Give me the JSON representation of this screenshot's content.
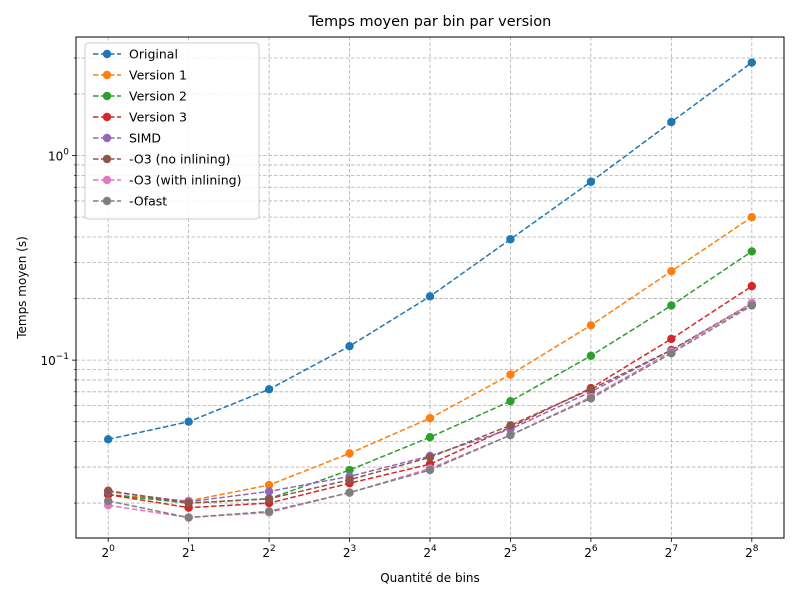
{
  "chart_data": {
    "type": "line",
    "title": "Temps moyen par bin par version",
    "xlabel": "Quantité de bins",
    "ylabel": "Temps moyen (s)",
    "x_scale": "log2",
    "y_scale": "log10",
    "x": [
      1,
      2,
      4,
      8,
      16,
      32,
      64,
      128,
      256
    ],
    "x_tick_labels": [
      {
        "base": "2",
        "exp": "0"
      },
      {
        "base": "2",
        "exp": "1"
      },
      {
        "base": "2",
        "exp": "2"
      },
      {
        "base": "2",
        "exp": "3"
      },
      {
        "base": "2",
        "exp": "4"
      },
      {
        "base": "2",
        "exp": "5"
      },
      {
        "base": "2",
        "exp": "6"
      },
      {
        "base": "2",
        "exp": "7"
      },
      {
        "base": "2",
        "exp": "8"
      }
    ],
    "y_tick_labels": [
      {
        "value": 0.1,
        "base": "10",
        "exp": "−1"
      },
      {
        "value": 1,
        "base": "10",
        "exp": "0"
      }
    ],
    "ylim": [
      0.0135,
      3.8
    ],
    "grid": true,
    "legend_position": "top-left",
    "line_style": "dashed",
    "marker": "circle",
    "series": [
      {
        "name": "Original",
        "color": "#1f77b4",
        "values": [
          0.041,
          0.05,
          0.072,
          0.117,
          0.205,
          0.39,
          0.745,
          1.46,
          2.85
        ]
      },
      {
        "name": "Version 1",
        "color": "#ff7f0e",
        "values": [
          0.022,
          0.0205,
          0.0245,
          0.035,
          0.052,
          0.085,
          0.148,
          0.272,
          0.5
        ]
      },
      {
        "name": "Version 2",
        "color": "#2ca02c",
        "values": [
          0.022,
          0.02,
          0.021,
          0.029,
          0.042,
          0.063,
          0.105,
          0.185,
          0.34
        ]
      },
      {
        "name": "Version 3",
        "color": "#d62728",
        "values": [
          0.022,
          0.019,
          0.02,
          0.025,
          0.031,
          0.047,
          0.073,
          0.127,
          0.23
        ]
      },
      {
        "name": "SIMD",
        "color": "#9467bd",
        "values": [
          0.0228,
          0.0203,
          0.0228,
          0.027,
          0.034,
          0.046,
          0.07,
          0.112,
          0.19
        ]
      },
      {
        "name": "-O3 (no inlining)",
        "color": "#8c564b",
        "values": [
          0.023,
          0.02,
          0.021,
          0.026,
          0.0335,
          0.048,
          0.072,
          0.112,
          0.188
        ]
      },
      {
        "name": "-O3 (with inlining)",
        "color": "#e377c2",
        "values": [
          0.0195,
          0.017,
          0.018,
          0.0225,
          0.0295,
          0.043,
          0.066,
          0.11,
          0.19
        ]
      },
      {
        "name": "-Ofast",
        "color": "#7f7f7f",
        "values": [
          0.0205,
          0.017,
          0.0182,
          0.0225,
          0.029,
          0.043,
          0.065,
          0.108,
          0.185
        ]
      }
    ]
  }
}
